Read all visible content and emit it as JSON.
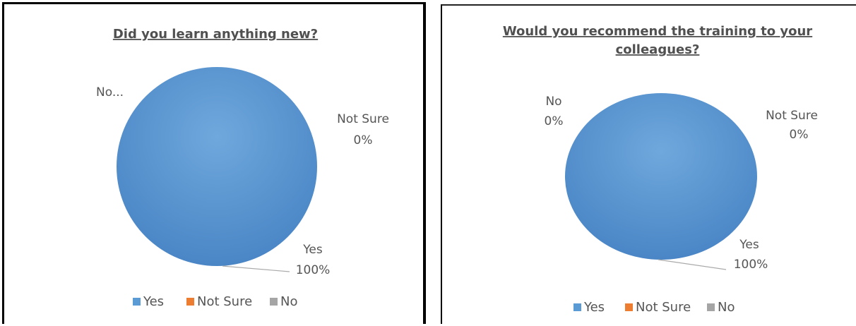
{
  "chart_data": [
    {
      "type": "pie",
      "title": "Did you learn anything new?",
      "categories": [
        "Yes",
        "Not Sure",
        "No"
      ],
      "values": [
        100,
        0,
        0
      ],
      "colors": [
        "#5b9bd5",
        "#ed7d31",
        "#a5a5a5"
      ],
      "data_labels": {
        "yes_name": "Yes",
        "yes_value": "100%",
        "not_sure_name": "Not Sure",
        "not_sure_value": "0%",
        "no_text": "No..."
      },
      "legend": {
        "position": "bottom",
        "items": [
          "Yes",
          "Not Sure",
          "No"
        ]
      }
    },
    {
      "type": "pie",
      "title_lines": [
        "Would you recommend the training to your",
        "colleagues?"
      ],
      "categories": [
        "Yes",
        "Not Sure",
        "No"
      ],
      "values": [
        100,
        0,
        0
      ],
      "colors": [
        "#5b9bd5",
        "#ed7d31",
        "#a5a5a5"
      ],
      "data_labels": {
        "yes_name": "Yes",
        "yes_value": "100%",
        "not_sure_name": "Not Sure",
        "not_sure_value": "0%",
        "no_name": "No",
        "no_value": "0%"
      },
      "legend": {
        "position": "bottom",
        "items": [
          "Yes",
          "Not Sure",
          "No"
        ]
      }
    }
  ]
}
